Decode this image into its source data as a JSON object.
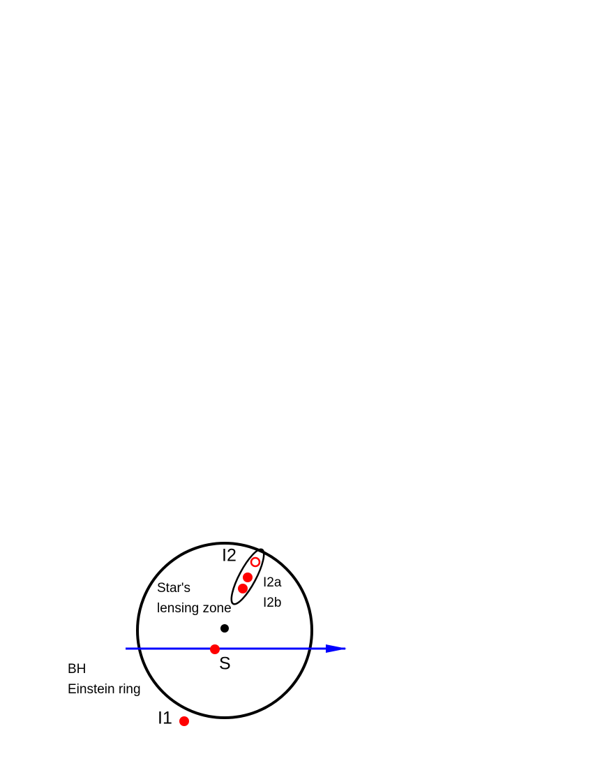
{
  "labels": {
    "i2": "I2",
    "i2a": "I2a",
    "i2b": "I2b",
    "star_zone": [
      "Star's",
      "lensing zone"
    ],
    "s": "S",
    "bh_ring": [
      "BH",
      "Einstein ring"
    ],
    "i1": "I1"
  }
}
